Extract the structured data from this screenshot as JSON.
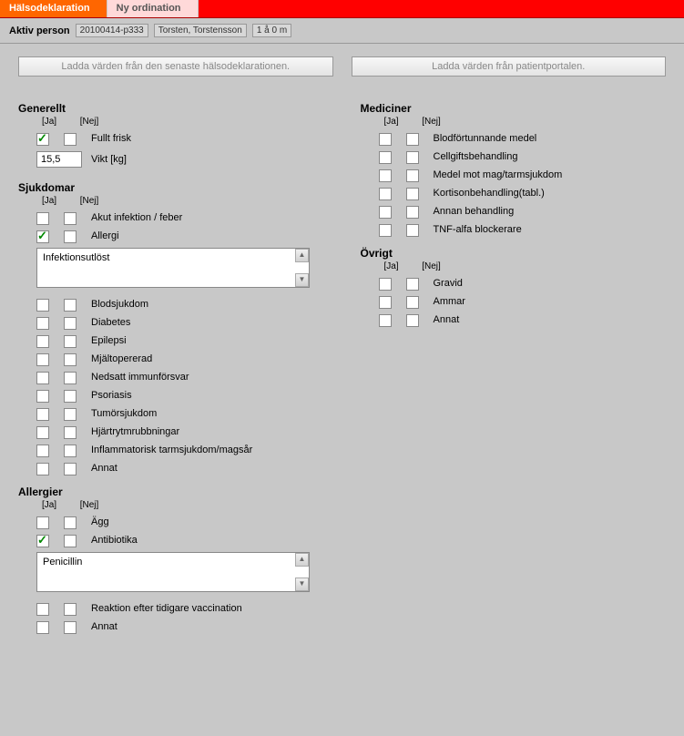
{
  "tabs": {
    "active": "Hälsodeklaration",
    "inactive": "Ny ordination"
  },
  "infobar": {
    "label": "Aktiv person",
    "pid": "20100414-p333",
    "name": "Torsten, Torstensson",
    "age": "1 å 0 m"
  },
  "buttons": {
    "load_last": "Ladda värden från den senaste hälsodeklarationen.",
    "load_portal": "Ladda värden från patientportalen."
  },
  "headers": {
    "ja": "[Ja]",
    "nej": "[Nej]"
  },
  "generellt": {
    "title": "Generellt",
    "fullt_frisk": {
      "label": "Fullt frisk",
      "ja": true,
      "nej": false
    },
    "vikt_label": "Vikt [kg]",
    "vikt_value": "15,5"
  },
  "sjukdomar": {
    "title": "Sjukdomar",
    "items": [
      {
        "label": "Akut infektion / feber",
        "ja": false,
        "nej": false
      },
      {
        "label": "Allergi",
        "ja": true,
        "nej": false,
        "text": "Infektionsutlöst"
      },
      {
        "label": "Blodsjukdom",
        "ja": false,
        "nej": false
      },
      {
        "label": "Diabetes",
        "ja": false,
        "nej": false
      },
      {
        "label": "Epilepsi",
        "ja": false,
        "nej": false
      },
      {
        "label": "Mjältopererad",
        "ja": false,
        "nej": false
      },
      {
        "label": "Nedsatt immunförsvar",
        "ja": false,
        "nej": false
      },
      {
        "label": "Psoriasis",
        "ja": false,
        "nej": false
      },
      {
        "label": "Tumörsjukdom",
        "ja": false,
        "nej": false
      },
      {
        "label": "Hjärtrytmrubbningar",
        "ja": false,
        "nej": false
      },
      {
        "label": "Inflammatorisk tarmsjukdom/magsår",
        "ja": false,
        "nej": false
      },
      {
        "label": "Annat",
        "ja": false,
        "nej": false
      }
    ]
  },
  "allergier": {
    "title": "Allergier",
    "items": [
      {
        "label": "Ägg",
        "ja": false,
        "nej": false
      },
      {
        "label": "Antibiotika",
        "ja": true,
        "nej": false,
        "text": "Penicillin"
      },
      {
        "label": "Reaktion efter tidigare vaccination",
        "ja": false,
        "nej": false
      },
      {
        "label": "Annat",
        "ja": false,
        "nej": false
      }
    ]
  },
  "mediciner": {
    "title": "Mediciner",
    "items": [
      {
        "label": "Blodförtunnande medel",
        "ja": false,
        "nej": false
      },
      {
        "label": "Cellgiftsbehandling",
        "ja": false,
        "nej": false
      },
      {
        "label": "Medel mot mag/tarmsjukdom",
        "ja": false,
        "nej": false
      },
      {
        "label": "Kortisonbehandling(tabl.)",
        "ja": false,
        "nej": false
      },
      {
        "label": "Annan behandling",
        "ja": false,
        "nej": false
      },
      {
        "label": "TNF-alfa blockerare",
        "ja": false,
        "nej": false
      }
    ]
  },
  "ovrigt": {
    "title": "Övrigt",
    "items": [
      {
        "label": "Gravid",
        "ja": false,
        "nej": false
      },
      {
        "label": "Ammar",
        "ja": false,
        "nej": false
      },
      {
        "label": "Annat",
        "ja": false,
        "nej": false
      }
    ]
  },
  "colors": {
    "tab_active_bg": "#ff6600",
    "tab_bar_bg": "#ff0000",
    "tab_inactive_bg": "#ffd9d9",
    "page_bg": "#c8c8c8",
    "check_color": "#008800"
  }
}
